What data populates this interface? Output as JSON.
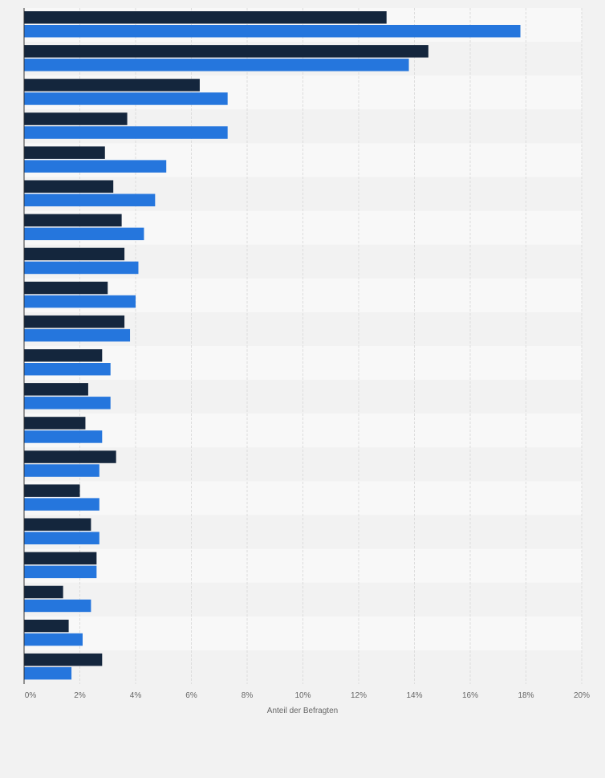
{
  "chart_data": {
    "type": "bar",
    "orientation": "horizontal",
    "xlabel": "Anteil der Befragten",
    "xlim": [
      0,
      20
    ],
    "x_ticks": [
      0,
      2,
      4,
      6,
      8,
      10,
      12,
      14,
      16,
      18,
      20
    ],
    "tick_labels": [
      "0%",
      "2%",
      "4%",
      "6%",
      "8%",
      "10%",
      "12%",
      "14%",
      "16%",
      "18%",
      "20%"
    ],
    "grid": true,
    "categories": [
      "",
      "",
      "",
      "",
      "",
      "",
      "",
      "",
      "",
      "",
      "",
      "",
      "",
      "",
      "",
      "",
      "",
      "",
      "",
      ""
    ],
    "series": [
      {
        "color": "#14263d",
        "values": [
          13.0,
          14.5,
          6.3,
          3.7,
          2.9,
          3.2,
          3.5,
          3.6,
          3.0,
          3.6,
          2.8,
          2.3,
          2.2,
          3.3,
          2.0,
          2.4,
          2.6,
          1.4,
          1.6,
          2.8
        ]
      },
      {
        "color": "#2576dd",
        "values": [
          17.8,
          13.8,
          7.3,
          7.3,
          5.1,
          4.7,
          4.3,
          4.1,
          4.0,
          3.8,
          3.1,
          3.1,
          2.8,
          2.7,
          2.7,
          2.7,
          2.6,
          2.4,
          2.1,
          1.7
        ]
      }
    ]
  }
}
